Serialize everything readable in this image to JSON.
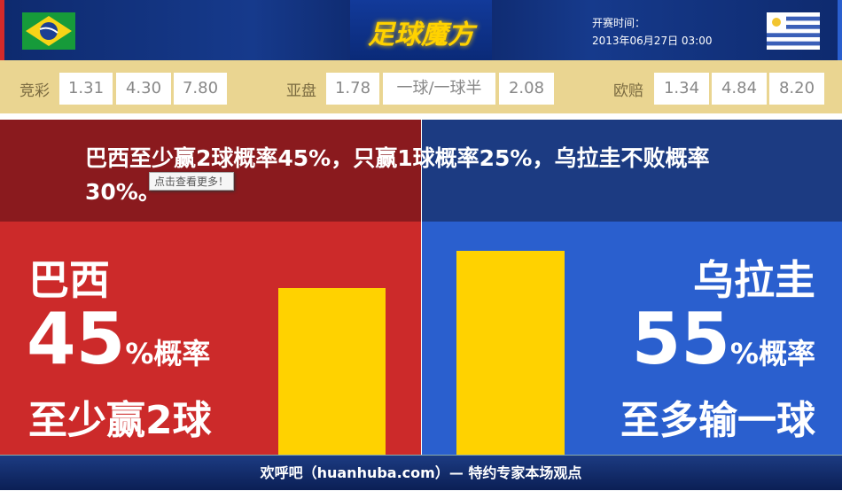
{
  "header": {
    "logo": "足球魔方",
    "kickoff_label": "开赛时间：",
    "kickoff_time": "2013年06月27日 03:00",
    "home_flag": "brazil-flag-icon",
    "away_flag": "uruguay-flag-icon"
  },
  "odds": {
    "jingcai": {
      "label": "竞彩",
      "values": [
        "1.31",
        "4.30",
        "7.80"
      ]
    },
    "yapan": {
      "label": "亚盘",
      "values": [
        "1.78",
        "一球/一球半",
        "2.08"
      ]
    },
    "oupei": {
      "label": "欧赔",
      "values": [
        "1.34",
        "4.84",
        "8.20"
      ]
    }
  },
  "headline": "巴西至少赢2球概率45%，只赢1球概率25%，乌拉圭不败概率30%。",
  "tooltip": "点击查看更多！",
  "home": {
    "name": "巴西",
    "pct": "45",
    "pct_suffix": "%概率",
    "desc": "至少赢2球",
    "color": "#cc2a2a",
    "bar_value": 45
  },
  "away": {
    "name": "乌拉圭",
    "pct": "55",
    "pct_suffix": "%概率",
    "desc": "至多输一球",
    "color": "#2a5fce",
    "bar_value": 55
  },
  "bar_color": "#ffd200",
  "footer": "欢呼吧（huanhuba.com）— 特约专家本场观点"
}
